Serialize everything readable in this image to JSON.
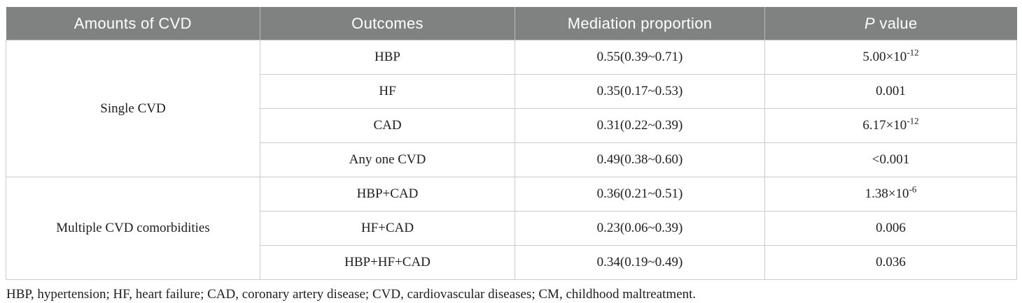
{
  "colors": {
    "header_bg": "#808282",
    "header_text": "#ffffff",
    "cell_border": "#c9cbcc",
    "body_text": "#202020"
  },
  "table": {
    "header": {
      "amounts": "Amounts of CVD",
      "outcomes": "Outcomes",
      "mediation": "Mediation proportion",
      "p_italic": "P",
      "p_rest": " value"
    },
    "groups": [
      {
        "label": "Single CVD",
        "rows": [
          {
            "outcome": "HBP",
            "mediation": "0.55(0.39~0.71)",
            "p_base": "5.00×10",
            "p_sup": "-12"
          },
          {
            "outcome": "HF",
            "mediation": "0.35(0.17~0.53)",
            "p_base": "0.001",
            "p_sup": ""
          },
          {
            "outcome": "CAD",
            "mediation": "0.31(0.22~0.39)",
            "p_base": "6.17×10",
            "p_sup": "-12"
          },
          {
            "outcome": "Any one CVD",
            "mediation": "0.49(0.38~0.60)",
            "p_base": "<0.001",
            "p_sup": ""
          }
        ]
      },
      {
        "label": "Multiple CVD comorbidities",
        "rows": [
          {
            "outcome": "HBP+CAD",
            "mediation": "0.36(0.21~0.51)",
            "p_base": "1.38×10",
            "p_sup": "-6"
          },
          {
            "outcome": "HF+CAD",
            "mediation": "0.23(0.06~0.39)",
            "p_base": "0.006",
            "p_sup": ""
          },
          {
            "outcome": "HBP+HF+CAD",
            "mediation": "0.34(0.19~0.49)",
            "p_base": "0.036",
            "p_sup": ""
          }
        ]
      }
    ],
    "footnote": "HBP, hypertension; HF, heart failure; CAD, coronary artery disease; CVD, cardiovascular diseases; CM, childhood maltreatment."
  },
  "chart_data": {
    "type": "table",
    "columns": [
      "Amounts of CVD",
      "Outcomes",
      "Mediation proportion",
      "P value"
    ],
    "rows": [
      [
        "Single CVD",
        "HBP",
        "0.55(0.39~0.71)",
        "5.00×10^-12"
      ],
      [
        "Single CVD",
        "HF",
        "0.35(0.17~0.53)",
        "0.001"
      ],
      [
        "Single CVD",
        "CAD",
        "0.31(0.22~0.39)",
        "6.17×10^-12"
      ],
      [
        "Single CVD",
        "Any one CVD",
        "0.49(0.38~0.60)",
        "<0.001"
      ],
      [
        "Multiple CVD comorbidities",
        "HBP+CAD",
        "0.36(0.21~0.51)",
        "1.38×10^-6"
      ],
      [
        "Multiple CVD comorbidities",
        "HF+CAD",
        "0.23(0.06~0.39)",
        "0.006"
      ],
      [
        "Multiple CVD comorbidities",
        "HBP+HF+CAD",
        "0.34(0.19~0.49)",
        "0.036"
      ]
    ],
    "footnote": "HBP, hypertension; HF, heart failure; CAD, coronary artery disease; CVD, cardiovascular diseases; CM, childhood maltreatment."
  }
}
